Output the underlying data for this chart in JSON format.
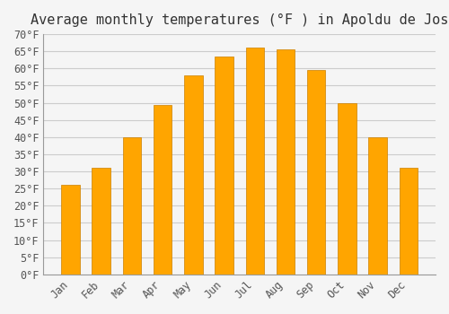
{
  "title": "Average monthly temperatures (°F ) in Apoldu de Jos",
  "months": [
    "Jan",
    "Feb",
    "Mar",
    "Apr",
    "May",
    "Jun",
    "Jul",
    "Aug",
    "Sep",
    "Oct",
    "Nov",
    "Dec"
  ],
  "values": [
    26,
    31,
    40,
    49.5,
    58,
    63.5,
    66,
    65.5,
    59.5,
    50,
    40,
    31
  ],
  "bar_color": "#FFA500",
  "bar_edge_color": "#CC8000",
  "ylim": [
    0,
    70
  ],
  "yticks": [
    0,
    5,
    10,
    15,
    20,
    25,
    30,
    35,
    40,
    45,
    50,
    55,
    60,
    65,
    70
  ],
  "ytick_labels": [
    "0°F",
    "5°F",
    "10°F",
    "15°F",
    "20°F",
    "25°F",
    "30°F",
    "35°F",
    "40°F",
    "45°F",
    "50°F",
    "55°F",
    "60°F",
    "65°F",
    "70°F"
  ],
  "grid_color": "#cccccc",
  "bg_color": "#f5f5f5",
  "title_fontsize": 11,
  "tick_fontsize": 8.5,
  "bar_width": 0.6
}
